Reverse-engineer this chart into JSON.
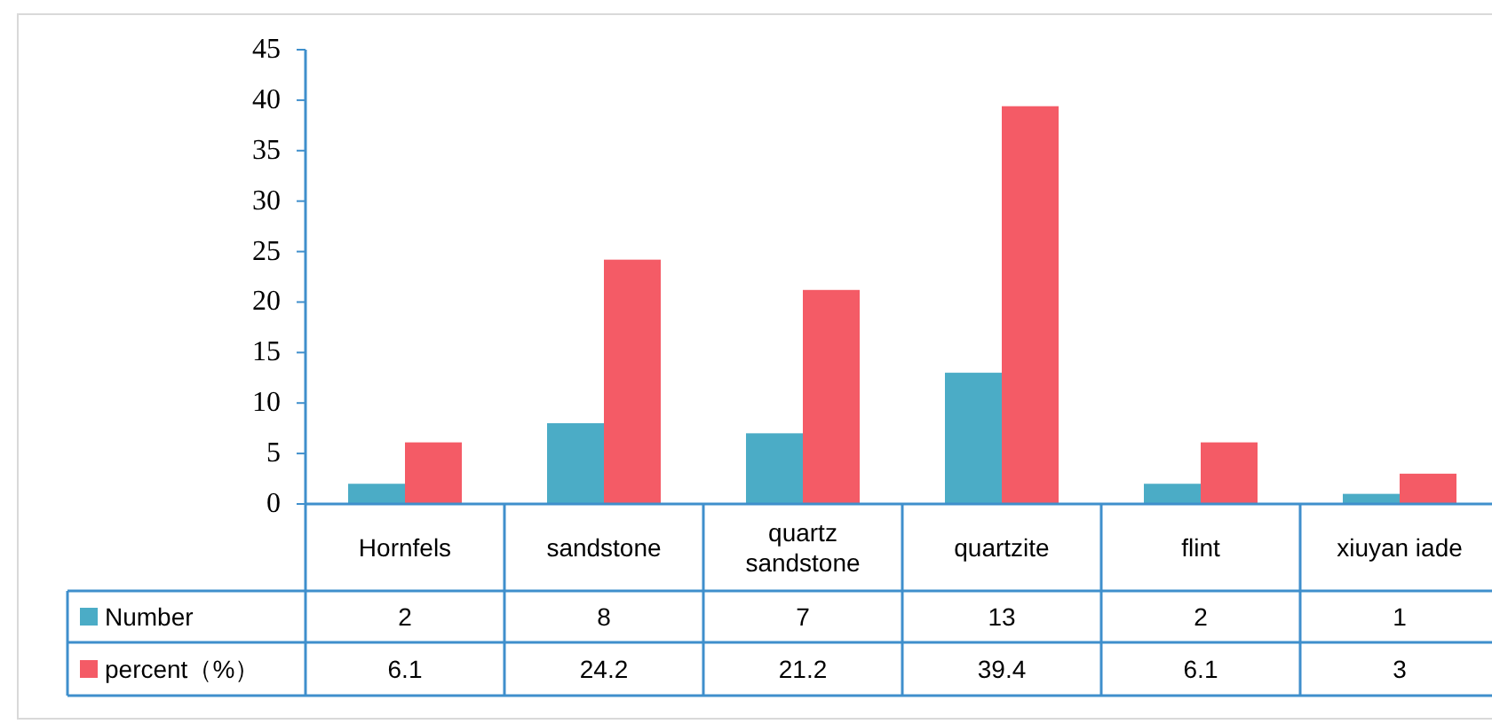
{
  "chart_data": {
    "type": "bar",
    "categories": [
      "Hornfels",
      "sandstone",
      "quartz sandstone",
      "quartzite",
      "flint",
      "xiuyan iade"
    ],
    "series": [
      {
        "name": "Number",
        "color": "#4bacc6",
        "values": [
          2,
          8,
          7,
          13,
          2,
          1
        ]
      },
      {
        "name": "percent（%）",
        "color": "#f45b66",
        "values": [
          6.1,
          24.2,
          21.2,
          39.4,
          6.1,
          3
        ]
      }
    ],
    "ylim": [
      0,
      45
    ],
    "yticks": [
      0,
      5,
      10,
      15,
      20,
      25,
      30,
      35,
      40,
      45
    ],
    "data_labels": true,
    "legend": "bottom left",
    "grid": false
  }
}
